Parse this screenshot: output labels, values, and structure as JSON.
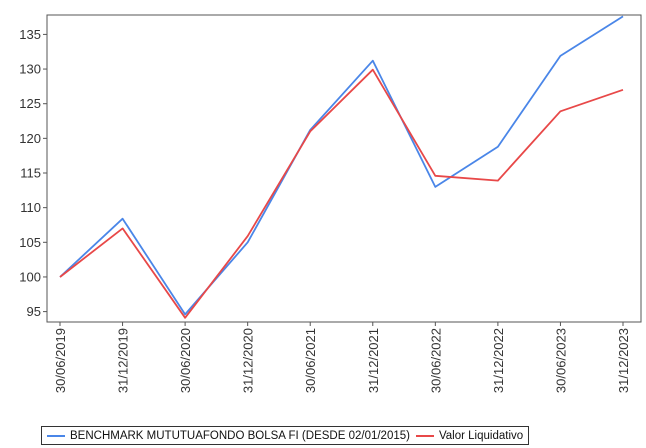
{
  "chart_data": {
    "type": "line",
    "title": "",
    "xlabel": "",
    "ylabel": "",
    "categories": [
      "30/06/2019",
      "31/12/2019",
      "30/06/2020",
      "31/12/2020",
      "30/06/2021",
      "31/12/2021",
      "30/06/2022",
      "31/12/2022",
      "30/06/2023",
      "31/12/2023"
    ],
    "yticks": [
      95,
      100,
      105,
      110,
      115,
      120,
      125,
      130,
      135
    ],
    "ylim": [
      93.5,
      137.8
    ],
    "grid": false,
    "legend_position": "bottom",
    "series": [
      {
        "name": "BENCHMARK MUTUTUAFONDO BOLSA FI (DESDE 02/01/2015)",
        "color": "#4a86e8",
        "values": [
          100.0,
          108.4,
          94.6,
          105.0,
          121.2,
          131.2,
          113.0,
          118.8,
          131.9,
          137.6
        ]
      },
      {
        "name": "Valor Liquidativo",
        "color": "#e84848",
        "values": [
          100.0,
          107.0,
          94.1,
          105.9,
          121.0,
          129.9,
          114.6,
          113.9,
          123.9,
          127.0
        ]
      }
    ]
  }
}
